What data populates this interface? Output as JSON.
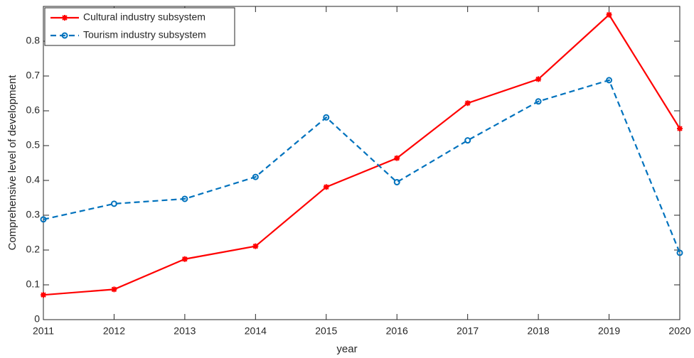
{
  "chart_data": {
    "type": "line",
    "xlabel": "year",
    "ylabel": "Comprehensive level of development",
    "x": [
      2011,
      2012,
      2013,
      2014,
      2015,
      2016,
      2017,
      2018,
      2019,
      2020
    ],
    "series": [
      {
        "name": "Cultural industry subsystem",
        "color": "#ff0000",
        "marker": "asterisk",
        "linestyle": "solid",
        "values": [
          0.071,
          0.087,
          0.174,
          0.211,
          0.381,
          0.464,
          0.622,
          0.691,
          0.876,
          0.549
        ]
      },
      {
        "name": "Tourism industry subsystem",
        "color": "#0072bd",
        "marker": "circle",
        "linestyle": "dashed",
        "values": [
          0.288,
          0.333,
          0.347,
          0.41,
          0.581,
          0.395,
          0.515,
          0.627,
          0.688,
          0.192
        ]
      }
    ],
    "xlim": [
      2011,
      2020
    ],
    "xticks": [
      2011,
      2012,
      2013,
      2014,
      2015,
      2016,
      2017,
      2018,
      2019,
      2020
    ],
    "ylim": [
      0,
      0.9
    ],
    "yticks": [
      0,
      0.1,
      0.2,
      0.3,
      0.4,
      0.5,
      0.6,
      0.7,
      0.8
    ],
    "legend": "northwest",
    "grid": false
  }
}
